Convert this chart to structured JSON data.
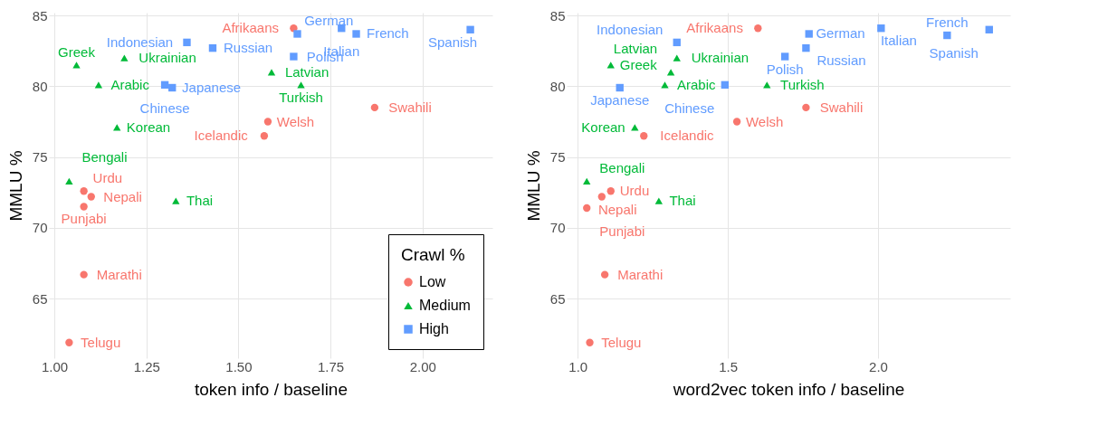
{
  "chart_data": [
    {
      "type": "scatter",
      "xlabel": "token info / baseline",
      "ylabel": "MMLU %",
      "legend_title": "Crawl %",
      "legend": "bottom right",
      "grid": true,
      "xlim": [
        0.985,
        2.19
      ],
      "ylim": [
        60.8,
        85.2
      ],
      "xticks": [
        {
          "value": 1,
          "label": "1.00"
        },
        1.25,
        {
          "value": 1.5,
          "label": "1.50"
        },
        1.75,
        {
          "value": 2,
          "label": "2.00"
        }
      ],
      "yticks": [
        65,
        70,
        75,
        80,
        85
      ],
      "series": [
        {
          "name": "Low",
          "color": "#f8766d",
          "marker": "circle",
          "x": [
            1.65,
            1.58,
            1.57,
            1.87,
            1.08,
            1.1,
            1.08,
            1.08,
            1.04
          ],
          "values": [
            84.1,
            77.5,
            76.5,
            78.5,
            72.6,
            72.2,
            71.5,
            66.7,
            61.9
          ]
        },
        {
          "name": "Medium",
          "color": "#00ba38",
          "marker": "triangle",
          "x": [
            1.19,
            1.06,
            1.12,
            1.59,
            1.67,
            1.17,
            1.04,
            1.33
          ],
          "values": [
            82.0,
            81.5,
            80.1,
            81.0,
            80.1,
            77.1,
            73.3,
            71.9
          ]
        },
        {
          "name": "High",
          "color": "#619cff",
          "marker": "square",
          "x": [
            1.78,
            1.66,
            1.82,
            2.13,
            1.36,
            1.43,
            1.65,
            1.3,
            1.32
          ],
          "values": [
            84.1,
            83.7,
            83.7,
            84.0,
            83.1,
            82.7,
            82.1,
            80.1,
            79.9
          ]
        }
      ],
      "annotations": [
        {
          "text": "Afrikaans",
          "x": 1.65,
          "y": 84.1
        },
        {
          "text": "Welsh",
          "x": 1.58,
          "y": 77.5
        },
        {
          "text": "Icelandic",
          "x": 1.57,
          "y": 76.5
        },
        {
          "text": "Swahili",
          "x": 1.87,
          "y": 78.5
        },
        {
          "text": "Urdu",
          "x": 1.08,
          "y": 72.6
        },
        {
          "text": "Nepali",
          "x": 1.1,
          "y": 72.2
        },
        {
          "text": "Punjabi",
          "x": 1.08,
          "y": 71.5
        },
        {
          "text": "Marathi",
          "x": 1.08,
          "y": 66.7
        },
        {
          "text": "Telugu",
          "x": 1.04,
          "y": 61.9
        },
        {
          "text": "Ukrainian",
          "x": 1.19,
          "y": 82.0
        },
        {
          "text": "Greek",
          "x": 1.06,
          "y": 81.5
        },
        {
          "text": "Arabic",
          "x": 1.12,
          "y": 80.1
        },
        {
          "text": "Latvian",
          "x": 1.59,
          "y": 81.0
        },
        {
          "text": "Turkish",
          "x": 1.67,
          "y": 80.1
        },
        {
          "text": "Korean",
          "x": 1.17,
          "y": 77.1
        },
        {
          "text": "Bengali",
          "x": 1.04,
          "y": 73.3
        },
        {
          "text": "Thai",
          "x": 1.33,
          "y": 71.9
        },
        {
          "text": "Italian",
          "x": 1.78,
          "y": 84.1
        },
        {
          "text": "German",
          "x": 1.66,
          "y": 83.7
        },
        {
          "text": "French",
          "x": 1.82,
          "y": 83.7
        },
        {
          "text": "Spanish",
          "x": 2.13,
          "y": 84.0
        },
        {
          "text": "Indonesian",
          "x": 1.36,
          "y": 83.1
        },
        {
          "text": "Russian",
          "x": 1.43,
          "y": 82.7
        },
        {
          "text": "Polish",
          "x": 1.65,
          "y": 82.1
        },
        {
          "text": "Chinese",
          "x": 1.3,
          "y": 80.1
        },
        {
          "text": "Japanese",
          "x": 1.32,
          "y": 79.9
        }
      ]
    },
    {
      "type": "scatter",
      "xlabel": "word2vec token info / baseline",
      "ylabel": "MMLU %",
      "grid": true,
      "xlim": [
        0.963,
        2.44
      ],
      "ylim": [
        60.8,
        85.2
      ],
      "xticks": [
        {
          "value": 1,
          "label": "1.0"
        },
        1.5,
        {
          "value": 2,
          "label": "2.0"
        }
      ],
      "yticks": [
        65,
        70,
        75,
        80,
        85
      ],
      "series": [
        {
          "color": "#f8766d",
          "marker": "circle",
          "x": [
            1.6,
            1.76,
            1.53,
            1.22,
            1.11,
            1.08,
            1.03,
            1.09,
            1.04
          ],
          "values": [
            84.1,
            78.5,
            77.5,
            76.5,
            72.6,
            72.2,
            71.4,
            66.7,
            61.9
          ]
        },
        {
          "color": "#00ba38",
          "marker": "triangle",
          "x": [
            1.33,
            1.31,
            1.11,
            1.29,
            1.63,
            1.19,
            1.03,
            1.27
          ],
          "values": [
            82.0,
            81.0,
            81.5,
            80.1,
            80.1,
            77.1,
            73.3,
            71.9
          ]
        },
        {
          "color": "#619cff",
          "marker": "square",
          "x": [
            1.77,
            2.01,
            2.37,
            2.23,
            1.76,
            1.69,
            1.33,
            1.49,
            1.14
          ],
          "values": [
            83.7,
            84.1,
            84.0,
            83.6,
            82.7,
            82.1,
            83.1,
            80.1,
            79.9
          ]
        }
      ],
      "annotations": [
        {
          "text": "Afrikaans",
          "x": 1.6,
          "y": 84.1
        },
        {
          "text": "Swahili",
          "x": 1.76,
          "y": 78.5
        },
        {
          "text": "Welsh",
          "x": 1.53,
          "y": 77.5
        },
        {
          "text": "Icelandic",
          "x": 1.22,
          "y": 76.5
        },
        {
          "text": "Urdu",
          "x": 1.11,
          "y": 72.6
        },
        {
          "text": "Nepali",
          "x": 1.08,
          "y": 72.2
        },
        {
          "text": "Punjabi",
          "x": 1.03,
          "y": 71.4
        },
        {
          "text": "Marathi",
          "x": 1.09,
          "y": 66.7
        },
        {
          "text": "Telugu",
          "x": 1.04,
          "y": 61.9
        },
        {
          "text": "Ukrainian",
          "x": 1.33,
          "y": 82.0
        },
        {
          "text": "Latvian",
          "x": 1.31,
          "y": 81.0
        },
        {
          "text": "Greek",
          "x": 1.11,
          "y": 81.5
        },
        {
          "text": "Arabic",
          "x": 1.29,
          "y": 80.1
        },
        {
          "text": "Turkish",
          "x": 1.63,
          "y": 80.1
        },
        {
          "text": "Korean",
          "x": 1.19,
          "y": 77.1
        },
        {
          "text": "Bengali",
          "x": 1.03,
          "y": 73.3
        },
        {
          "text": "Thai",
          "x": 1.27,
          "y": 71.9
        },
        {
          "text": "German",
          "x": 1.77,
          "y": 83.7
        },
        {
          "text": "Italian",
          "x": 2.01,
          "y": 84.1
        },
        {
          "text": "Spanish",
          "x": 2.37,
          "y": 84.0
        },
        {
          "text": "French",
          "x": 2.23,
          "y": 83.6
        },
        {
          "text": "Russian",
          "x": 1.76,
          "y": 82.7
        },
        {
          "text": "Polish",
          "x": 1.69,
          "y": 82.1
        },
        {
          "text": "Indonesian",
          "x": 1.33,
          "y": 83.1
        },
        {
          "text": "Chinese",
          "x": 1.49,
          "y": 80.1
        },
        {
          "text": "Japanese",
          "x": 1.14,
          "y": 79.9
        }
      ]
    }
  ]
}
